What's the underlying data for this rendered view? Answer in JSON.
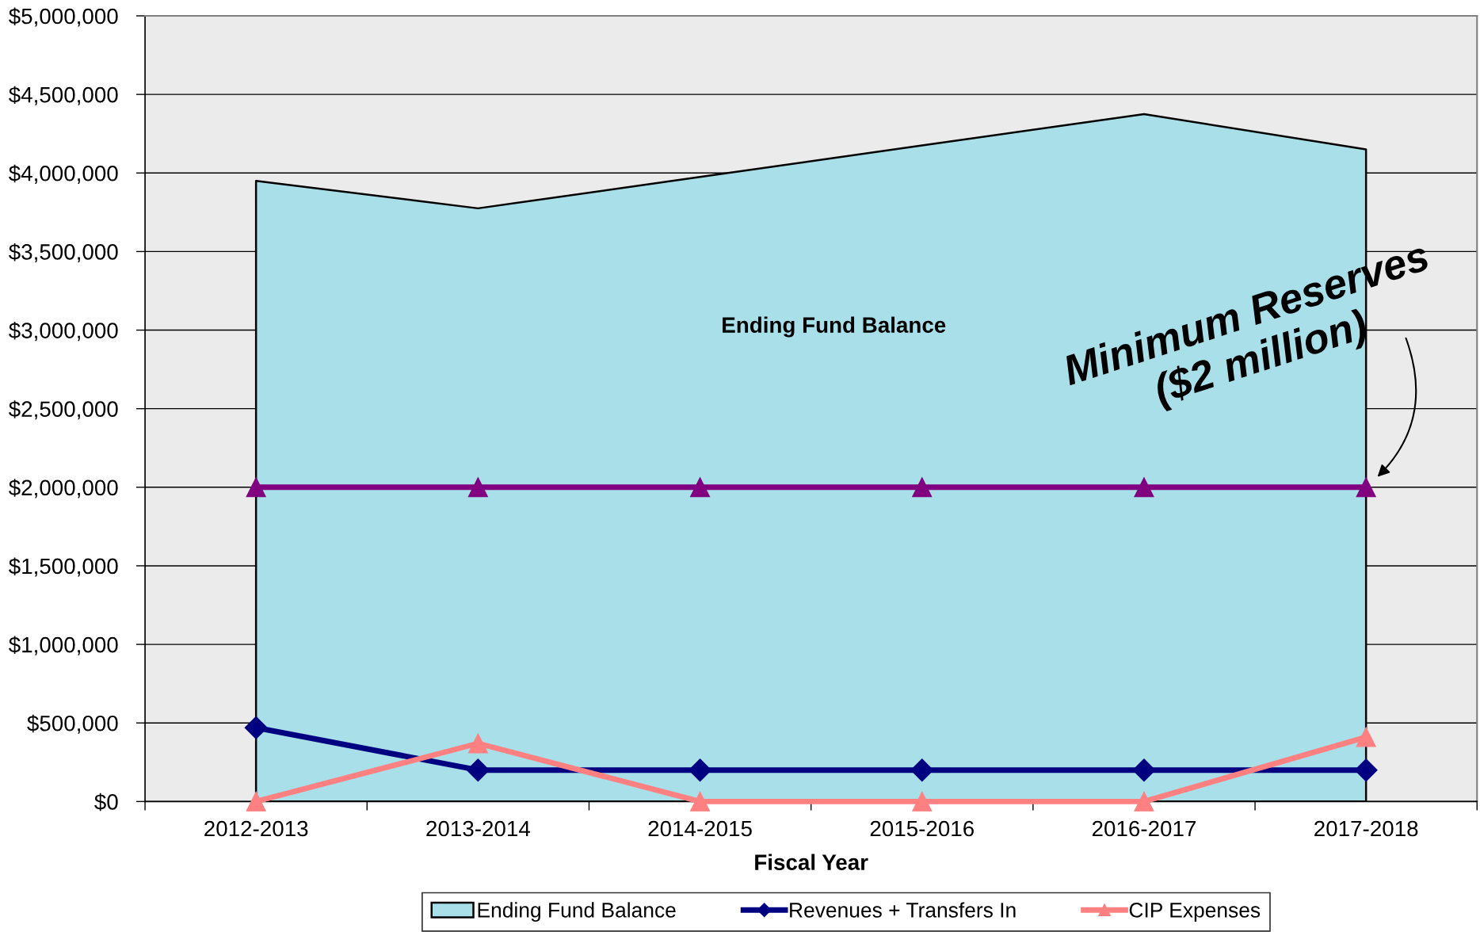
{
  "chart_data": {
    "type": "line",
    "categories": [
      "2012-2013",
      "2013-2014",
      "2014-2015",
      "2015-2016",
      "2016-2017",
      "2017-2018"
    ],
    "series": [
      {
        "name": "Ending Fund Balance",
        "type": "area",
        "color": "#a9dfe9",
        "values": [
          3950000,
          3775000,
          3975000,
          4175000,
          4375000,
          4150000
        ]
      },
      {
        "color": "#800080",
        "marker": "triangle",
        "values": [
          2000000,
          2000000,
          2000000,
          2000000,
          2000000,
          2000000
        ]
      },
      {
        "name": "Revenues + Transfers In",
        "color": "#000080",
        "marker": "diamond",
        "values": [
          470000,
          200000,
          200000,
          200000,
          200000,
          200000
        ]
      },
      {
        "name": "CIP Expenses",
        "color": "#ff8080",
        "marker": "triangle",
        "values": [
          0,
          370000,
          0,
          0,
          0,
          410000
        ]
      }
    ],
    "xlabel": "Fiscal Year",
    "ylim": [
      0,
      5000000
    ],
    "yticks": [
      {
        "value": 0,
        "label": "$0"
      },
      {
        "value": 500000,
        "label": "$500,000"
      },
      {
        "value": 1000000,
        "label": "$1,000,000"
      },
      {
        "value": 1500000,
        "label": "$1,500,000"
      },
      {
        "value": 2000000,
        "label": "$2,000,000"
      },
      {
        "value": 2500000,
        "label": "$2,500,000"
      },
      {
        "value": 3000000,
        "label": "$3,000,000"
      },
      {
        "value": 3500000,
        "label": "$3,500,000"
      },
      {
        "value": 4000000,
        "label": "$4,000,000"
      },
      {
        "value": 4500000,
        "label": "$4,500,000"
      },
      {
        "value": 5000000,
        "label": "$5,000,000"
      }
    ],
    "annotations": [
      "Ending Fund Balance",
      {
        "text": "Minimum Reserves\n($2 million)",
        "x": "2017-2018",
        "y": 2000000
      }
    ],
    "grid": "y",
    "legend": "bottom",
    "line_style": "solid"
  }
}
